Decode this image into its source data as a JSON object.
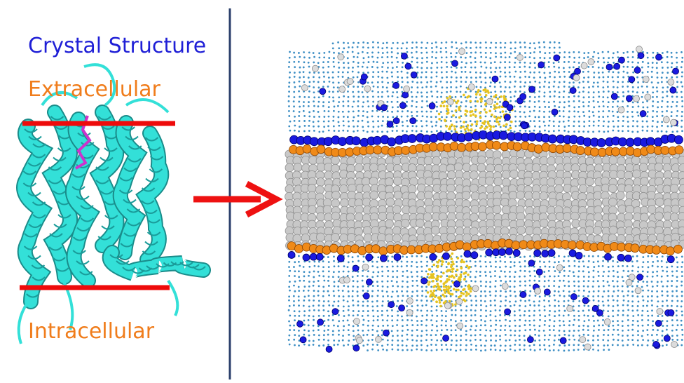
{
  "labels": {
    "title": "Crystal Structure",
    "extracellular": "Extracellular",
    "intracellular": "Intracellular"
  },
  "colors": {
    "title": "#1f1fd6",
    "compartment_label": "#f07d1c",
    "membrane_line": "#ee0b0b",
    "arrow": "#ee1111",
    "divider": "#2b3f6b",
    "protein": "#33e0d8",
    "ligand": "#cc33cc",
    "water": "#3e8fc4",
    "headgroup_top": "#1a1ae0",
    "headgroup_bottom": "#f08a18",
    "lipid_tail": "#c8c8c8",
    "ion_blue": "#1a1ae0",
    "ion_white": "#dcdcdc",
    "protein_embedded": "#e6c320"
  },
  "icons": {
    "arrow": "right-arrow-icon"
  }
}
